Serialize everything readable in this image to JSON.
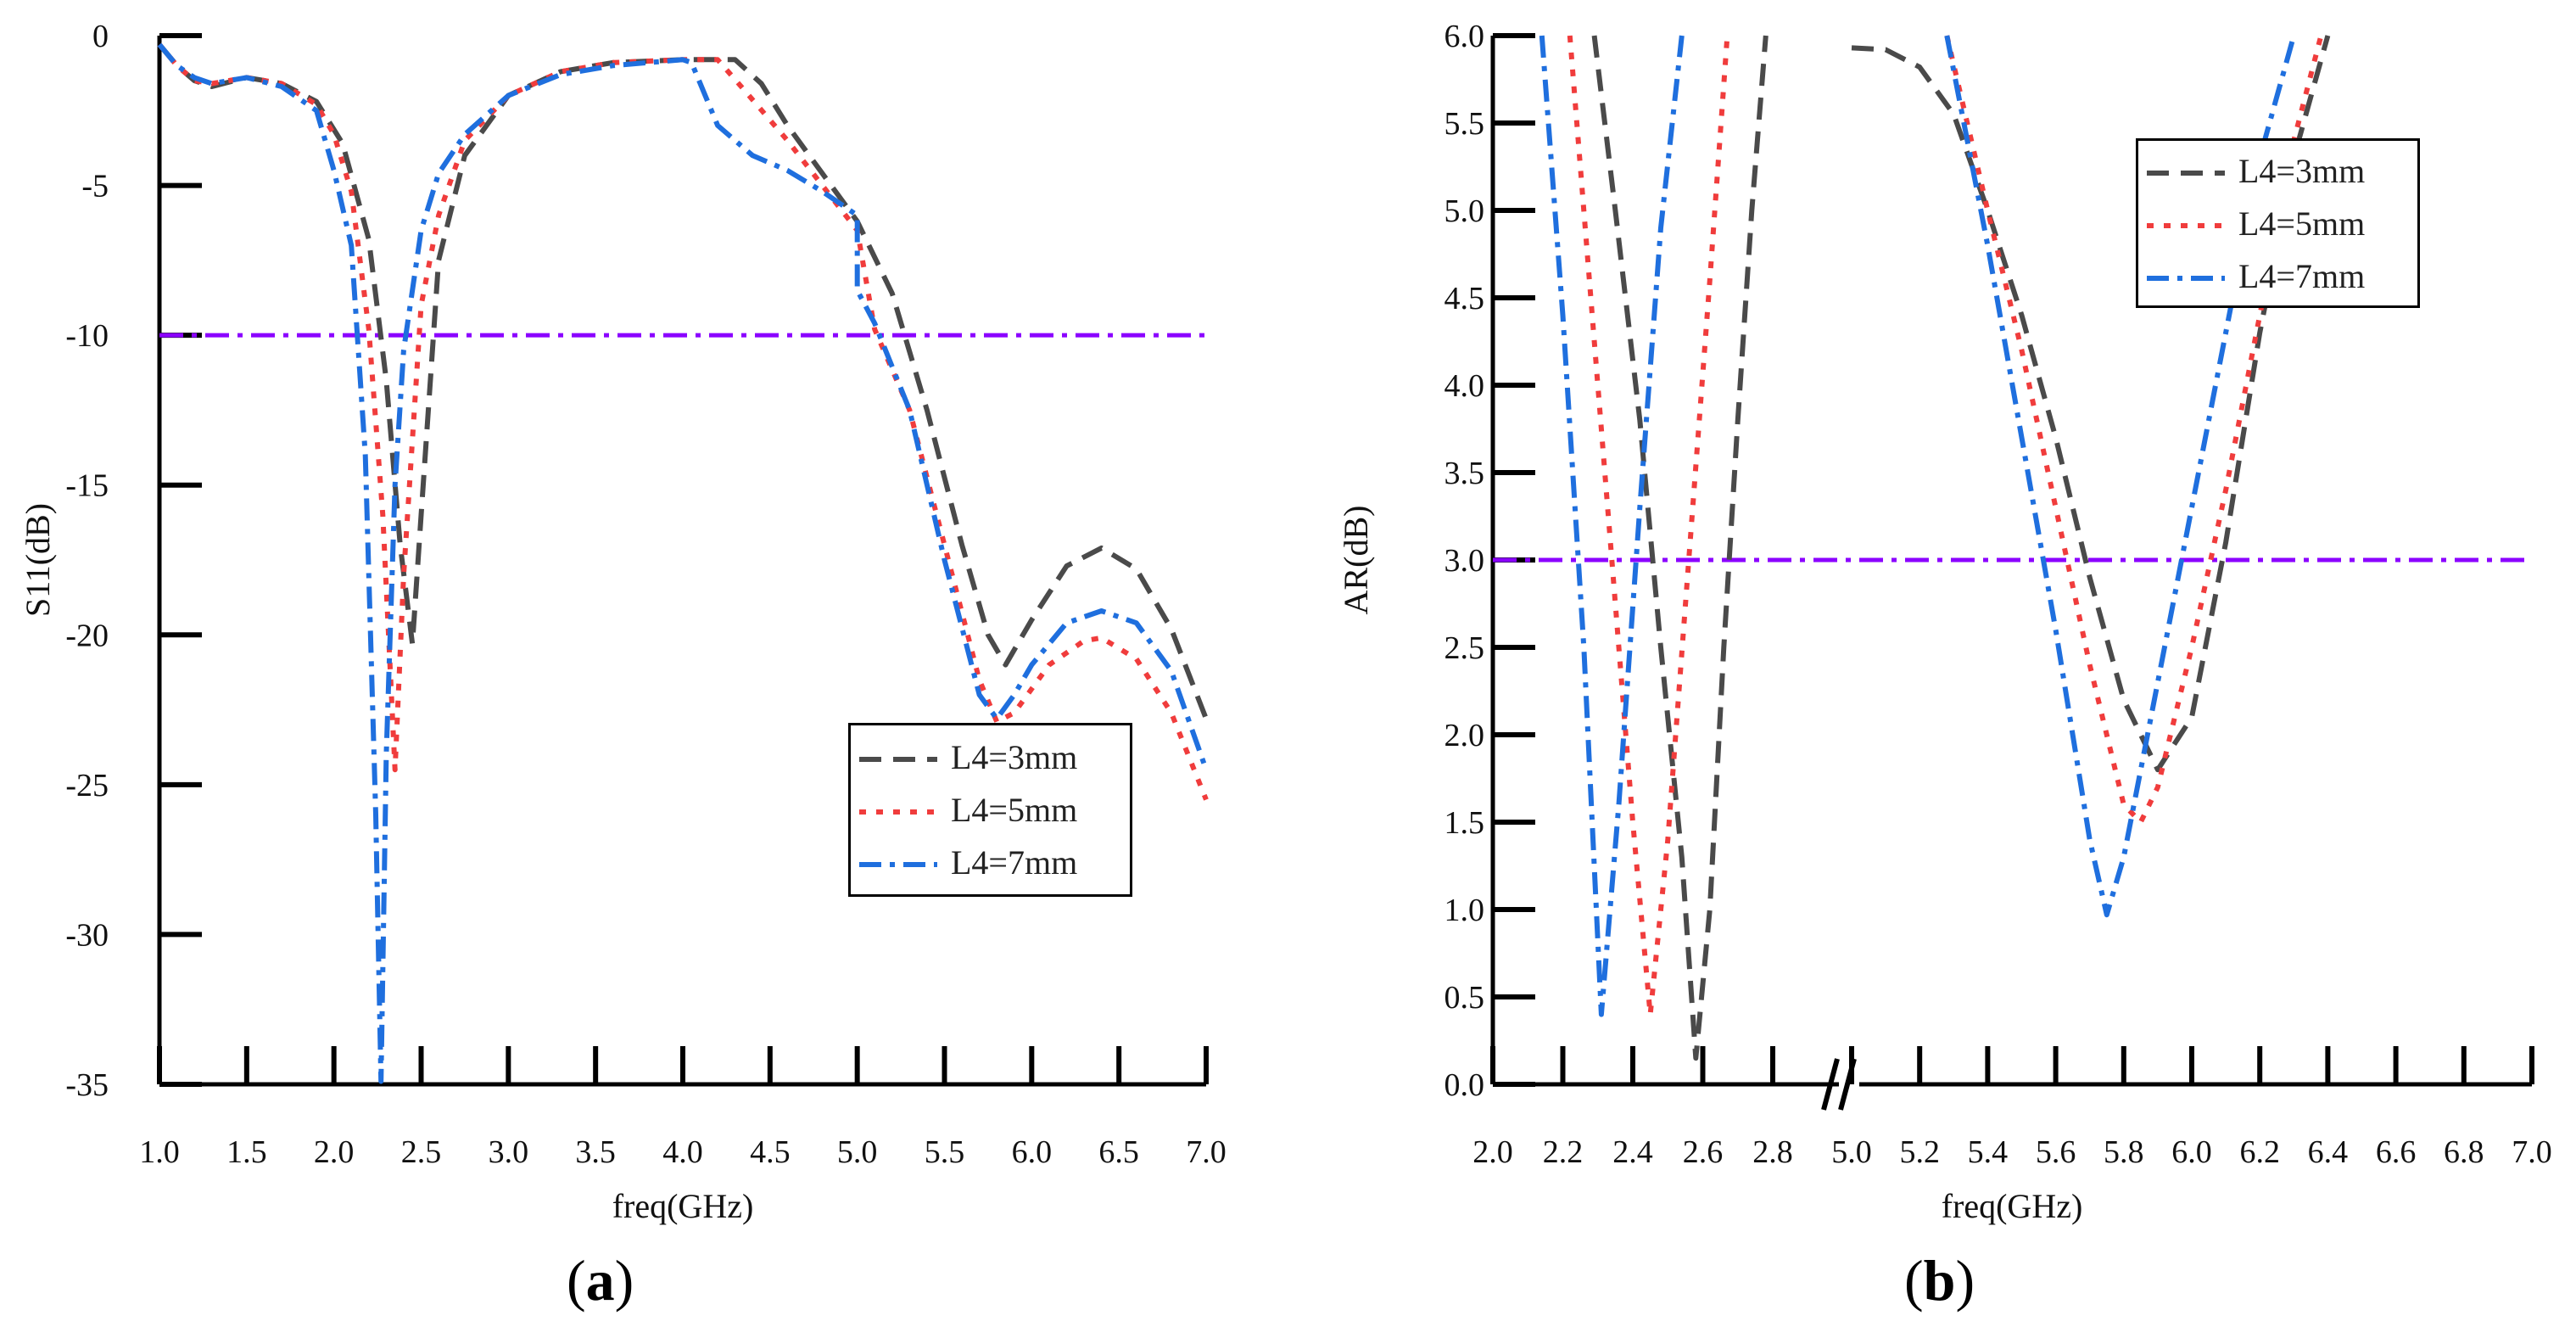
{
  "chart_data": [
    {
      "id": "a",
      "type": "line",
      "panel_label": "a",
      "xlabel": "freq(GHz)",
      "ylabel": "S11(dB)",
      "xlim": [
        1.0,
        7.0
      ],
      "ylim": [
        -35,
        0
      ],
      "xticks": [
        "1.0",
        "1.5",
        "2.0",
        "2.5",
        "3.0",
        "3.5",
        "4.0",
        "4.5",
        "5.0",
        "5.5",
        "6.0",
        "6.5",
        "7.0"
      ],
      "yticks": [
        "0",
        "-5",
        "-10",
        "-15",
        "-20",
        "-25",
        "-30",
        "-35"
      ],
      "reference_line": {
        "y": -10,
        "color": "#8B00FF"
      },
      "legend_position": "right",
      "series": [
        {
          "name": "L4=3mm",
          "color": "#4a4a4a",
          "dash": "dash",
          "x": [
            1.0,
            1.1,
            1.2,
            1.3,
            1.5,
            1.7,
            1.9,
            2.05,
            2.2,
            2.3,
            2.38,
            2.45,
            2.5,
            2.6,
            2.75,
            3.0,
            3.3,
            3.6,
            4.0,
            4.3,
            4.45,
            4.6,
            4.8,
            5.0,
            5.2,
            5.4,
            5.6,
            5.75,
            5.85,
            6.0,
            6.2,
            6.4,
            6.6,
            6.8,
            7.0
          ],
          "y": [
            -0.3,
            -1.0,
            -1.5,
            -1.7,
            -1.4,
            -1.6,
            -2.2,
            -3.6,
            -6.8,
            -11.5,
            -17.0,
            -20.3,
            -16.0,
            -7.5,
            -4.0,
            -2.0,
            -1.2,
            -0.9,
            -0.8,
            -0.8,
            -1.6,
            -3.0,
            -4.6,
            -6.2,
            -8.6,
            -12.5,
            -17.0,
            -20.0,
            -21.0,
            -19.5,
            -17.7,
            -17.1,
            -17.8,
            -19.8,
            -22.8
          ]
        },
        {
          "name": "L4=5mm",
          "color": "#f03c3c",
          "dash": "dot",
          "x": [
            1.0,
            1.1,
            1.2,
            1.3,
            1.5,
            1.7,
            1.9,
            2.0,
            2.1,
            2.2,
            2.28,
            2.35,
            2.4,
            2.5,
            2.6,
            2.75,
            3.0,
            3.3,
            3.6,
            4.0,
            4.2,
            4.35,
            4.6,
            4.8,
            5.0,
            5.1,
            5.3,
            5.5,
            5.7,
            5.8,
            5.9,
            6.1,
            6.3,
            6.4,
            6.6,
            6.8,
            7.0
          ],
          "y": [
            -0.3,
            -1.0,
            -1.5,
            -1.6,
            -1.4,
            -1.6,
            -2.3,
            -3.3,
            -5.2,
            -9.8,
            -16.0,
            -24.5,
            -18.0,
            -9.0,
            -6.0,
            -3.5,
            -2.0,
            -1.2,
            -0.9,
            -0.8,
            -0.8,
            -1.8,
            -3.5,
            -5.0,
            -6.5,
            -9.8,
            -12.5,
            -17.0,
            -21.5,
            -22.9,
            -22.6,
            -21.0,
            -20.2,
            -20.1,
            -20.8,
            -22.6,
            -25.5
          ]
        },
        {
          "name": "L4=7mm",
          "color": "#1f6fde",
          "dash": "dashdot",
          "x": [
            1.0,
            1.1,
            1.2,
            1.3,
            1.5,
            1.7,
            1.9,
            2.0,
            2.1,
            2.18,
            2.24,
            2.27,
            2.3,
            2.35,
            2.4,
            2.5,
            2.6,
            2.75,
            3.0,
            3.3,
            3.6,
            4.0,
            4.05,
            4.2,
            4.4,
            4.6,
            4.8,
            5.0,
            5.0,
            5.1,
            5.3,
            5.5,
            5.7,
            5.8,
            5.9,
            6.0,
            6.2,
            6.4,
            6.6,
            6.8,
            7.0
          ],
          "y": [
            -0.3,
            -1.0,
            -1.4,
            -1.6,
            -1.4,
            -1.7,
            -2.5,
            -4.5,
            -7.0,
            -14.0,
            -26.0,
            -34.9,
            -24.0,
            -15.0,
            -10.5,
            -6.5,
            -4.6,
            -3.3,
            -2.0,
            -1.3,
            -1.0,
            -0.8,
            -0.9,
            -3.0,
            -4.0,
            -4.5,
            -5.2,
            -6.0,
            -8.5,
            -9.6,
            -12.5,
            -17.5,
            -22.0,
            -22.8,
            -22.0,
            -21.0,
            -19.6,
            -19.2,
            -19.6,
            -21.2,
            -24.5
          ]
        }
      ]
    },
    {
      "id": "b",
      "type": "line",
      "panel_label": "b",
      "xlabel": "freq(GHz)",
      "ylabel": "AR(dB)",
      "x_segments": [
        [
          2.0,
          2.8
        ],
        [
          5.0,
          7.0
        ]
      ],
      "ylim": [
        0.0,
        6.0
      ],
      "xticks": [
        "2.0",
        "2.2",
        "2.4",
        "2.6",
        "2.8",
        "5.0",
        "5.2",
        "5.4",
        "5.6",
        "5.8",
        "6.0",
        "6.2",
        "6.4",
        "6.6",
        "6.8",
        "7.0"
      ],
      "yticks": [
        "0.0",
        "0.5",
        "1.0",
        "1.5",
        "2.0",
        "2.5",
        "3.0",
        "3.5",
        "4.0",
        "4.5",
        "5.0",
        "5.5",
        "6.0"
      ],
      "axis_break": "between 2.8 and 5.0",
      "reference_line": {
        "y": 3.0,
        "color": "#8B00FF"
      },
      "legend_position": "top-right",
      "series": [
        {
          "name": "L4=3mm",
          "color": "#4a4a4a",
          "dash": "dash",
          "segments": [
            {
              "x": [
                2.29,
                2.35,
                2.42,
                2.48,
                2.54,
                2.58,
                2.62,
                2.66,
                2.7,
                2.74,
                2.78
              ],
              "y": [
                6.0,
                5.0,
                3.8,
                2.5,
                1.3,
                0.15,
                1.0,
                2.5,
                3.8,
                5.0,
                6.0
              ]
            },
            {
              "x": [
                5.0,
                5.1,
                5.2,
                5.3,
                5.4,
                5.5,
                5.6,
                5.7,
                5.8,
                5.9,
                6.0,
                6.1,
                6.2,
                6.3,
                6.4
              ],
              "y": [
                5.93,
                5.92,
                5.82,
                5.55,
                5.0,
                4.4,
                3.7,
                2.9,
                2.2,
                1.8,
                2.1,
                3.1,
                4.3,
                5.3,
                6.0
              ]
            }
          ]
        },
        {
          "name": "L4=5mm",
          "color": "#f03c3c",
          "dash": "dot",
          "segments": [
            {
              "x": [
                2.22,
                2.28,
                2.34,
                2.4,
                2.45,
                2.5,
                2.56,
                2.62,
                2.67
              ],
              "y": [
                6.0,
                4.5,
                3.0,
                1.5,
                0.4,
                1.4,
                3.0,
                4.6,
                6.0
              ]
            },
            {
              "x": [
                5.28,
                5.4,
                5.5,
                5.6,
                5.7,
                5.8,
                5.85,
                5.9,
                6.0,
                6.1,
                6.2,
                6.3,
                6.38
              ],
              "y": [
                6.0,
                5.0,
                4.2,
                3.3,
                2.4,
                1.6,
                1.5,
                1.7,
                2.5,
                3.4,
                4.4,
                5.4,
                6.0
              ]
            }
          ]
        },
        {
          "name": "L4=7mm",
          "color": "#1f6fde",
          "dash": "dashdot",
          "segments": [
            {
              "x": [
                2.14,
                2.2,
                2.26,
                2.31,
                2.36,
                2.42,
                2.48,
                2.54
              ],
              "y": [
                6.0,
                4.4,
                2.5,
                0.4,
                1.6,
                3.3,
                4.9,
                6.0
              ]
            },
            {
              "x": [
                5.28,
                5.4,
                5.5,
                5.6,
                5.7,
                5.75,
                5.8,
                5.9,
                6.0,
                6.1,
                6.2,
                6.3
              ],
              "y": [
                6.0,
                4.8,
                3.7,
                2.6,
                1.4,
                0.97,
                1.3,
                2.3,
                3.3,
                4.3,
                5.3,
                6.0
              ]
            }
          ]
        }
      ]
    }
  ]
}
